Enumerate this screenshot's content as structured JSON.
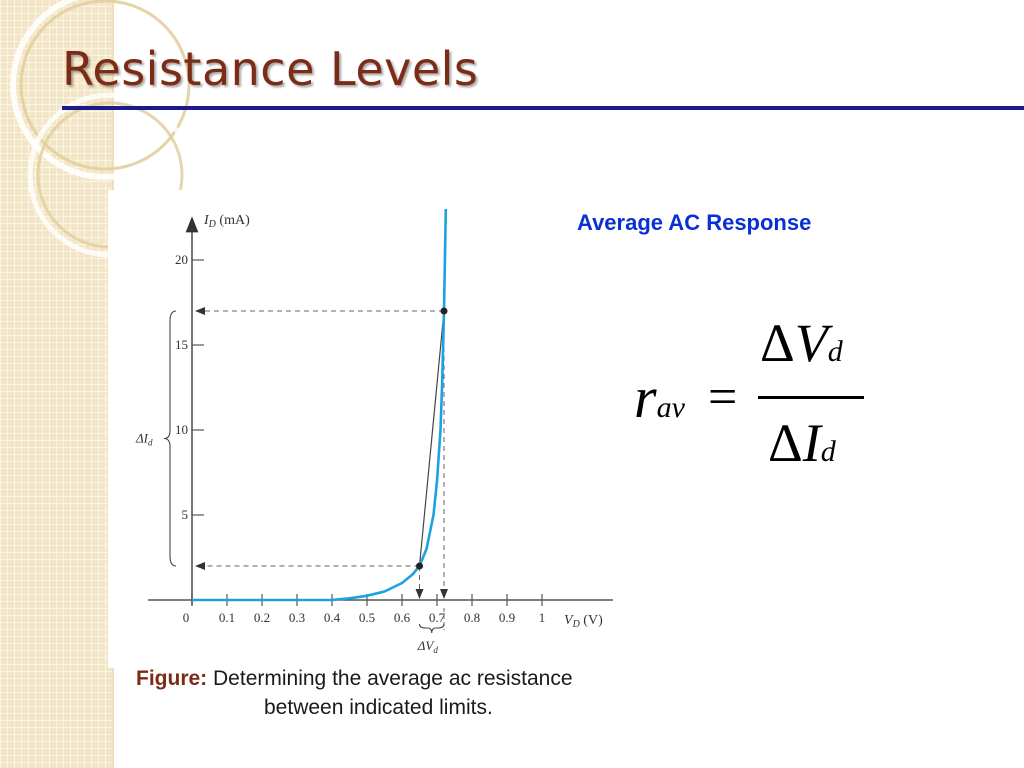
{
  "title": "Resistance Levels",
  "heading": "Average AC Response",
  "caption": {
    "label": "Figure:",
    "line1": "Determining the average ac resistance",
    "line2": "between indicated limits."
  },
  "formula": {
    "lhs": "r",
    "lhs_sub": "av",
    "equals": "=",
    "num_delta": "Δ",
    "num_var": "V",
    "num_sub": "d",
    "den_delta": "Δ",
    "den_var": "I",
    "den_sub": "d"
  },
  "colors": {
    "title": "#7b2b16",
    "rule": "#1a1a8c",
    "heading": "#0b2fd6",
    "curve": "#1aa3e0",
    "background_band": "#f3e6c6"
  },
  "diagram": {
    "y_axis_label": "I",
    "y_axis_sub": "D",
    "y_axis_unit": "(mA)",
    "x_axis_label": "V",
    "x_axis_sub": "D",
    "x_axis_unit": "(V)",
    "delta_i_label": "ΔI",
    "delta_i_sub": "d",
    "delta_v_label": "ΔV",
    "delta_v_sub": "d",
    "x_ticks": [
      "0",
      "0.1",
      "0.2",
      "0.3",
      "0.4",
      "0.5",
      "0.6",
      "0.7",
      "0.8",
      "0.9",
      "1"
    ],
    "y_ticks": [
      "5",
      "10",
      "15",
      "20"
    ],
    "x_range": [
      0,
      1
    ],
    "y_range": [
      0,
      22
    ],
    "points": [
      {
        "vd": 0.65,
        "id": 2
      },
      {
        "vd": 0.72,
        "id": 17
      }
    ],
    "curve": [
      [
        0,
        0
      ],
      [
        0.4,
        0
      ],
      [
        0.45,
        0.1
      ],
      [
        0.5,
        0.25
      ],
      [
        0.55,
        0.5
      ],
      [
        0.6,
        1.0
      ],
      [
        0.63,
        1.5
      ],
      [
        0.65,
        2
      ],
      [
        0.67,
        3
      ],
      [
        0.69,
        5
      ],
      [
        0.7,
        7
      ],
      [
        0.71,
        10
      ],
      [
        0.715,
        13
      ],
      [
        0.72,
        17
      ],
      [
        0.725,
        23
      ]
    ]
  }
}
